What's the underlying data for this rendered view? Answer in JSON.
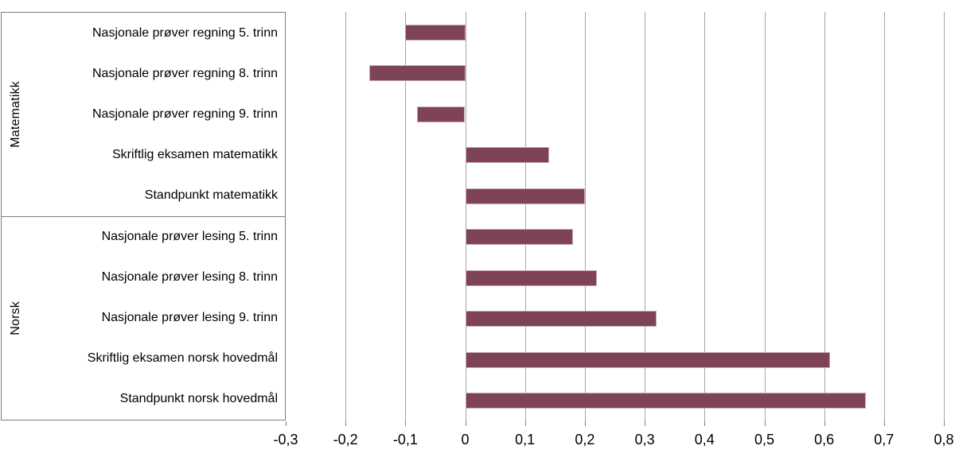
{
  "chart_data": {
    "type": "bar",
    "orientation": "horizontal",
    "title": "",
    "grid": true,
    "legend": false,
    "groups": [
      {
        "label": "Matematikk",
        "items": [
          {
            "label": "Nasjonale prøver regning 5. trinn",
            "value": -0.1
          },
          {
            "label": "Nasjonale prøver regning 8. trinn",
            "value": -0.16
          },
          {
            "label": "Nasjonale prøver regning 9. trinn",
            "value": -0.08
          },
          {
            "label": "Skriftlig eksamen matematikk",
            "value": 0.14
          },
          {
            "label": "Standpunkt matematikk",
            "value": 0.2
          }
        ]
      },
      {
        "label": "Norsk",
        "items": [
          {
            "label": "Nasjonale prøver lesing 5. trinn",
            "value": 0.18
          },
          {
            "label": "Nasjonale prøver lesing 8. trinn",
            "value": 0.22
          },
          {
            "label": "Nasjonale prøver lesing 9. trinn",
            "value": 0.32
          },
          {
            "label": "Skriftlig eksamen norsk hovedmål",
            "value": 0.61
          },
          {
            "label": "Standpunkt norsk hovedmål",
            "value": 0.67
          }
        ]
      }
    ],
    "x_axis": {
      "min": -0.3,
      "max": 0.8,
      "step": 0.1,
      "tick_labels": [
        "-0,3",
        "-0,2",
        "-0,1",
        "0",
        "0,1",
        "0,2",
        "0,3",
        "0,4",
        "0,5",
        "0,6",
        "0,7",
        "0,8"
      ]
    },
    "colors": {
      "bar_fill": "#7e4356",
      "bar_border": "#c6a9b4",
      "gridline": "#a6a6a6",
      "tick": "#808080",
      "box_border": "#7f7f7f",
      "text": "#000000",
      "background": "#ffffff"
    }
  }
}
